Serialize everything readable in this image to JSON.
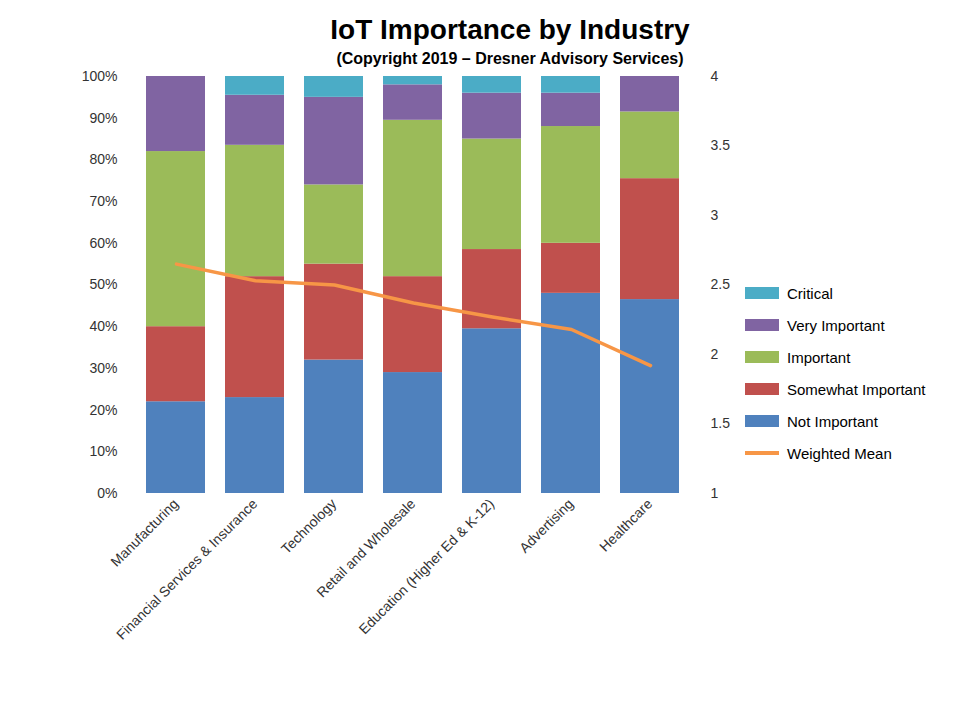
{
  "chart_data": {
    "type": "bar",
    "title": "IoT Importance by Industry",
    "subtitle": "(Copyright 2019 – Dresner Advisory Services)",
    "categories": [
      "Manufacturing",
      "Financial Services & Insurance",
      "Technology",
      "Retail and Wholesale",
      "Education (Higher Ed & K-12)",
      "Advertising",
      "Healthcare"
    ],
    "stacked": true,
    "grid": false,
    "legend": "right",
    "ylim": [
      0,
      100
    ],
    "yticks": [
      {
        "value": 0,
        "label": "0%"
      },
      {
        "value": 10,
        "label": "10%"
      },
      {
        "value": 20,
        "label": "20%"
      },
      {
        "value": 30,
        "label": "30%"
      },
      {
        "value": 40,
        "label": "40%"
      },
      {
        "value": 50,
        "label": "50%"
      },
      {
        "value": 60,
        "label": "60%"
      },
      {
        "value": 70,
        "label": "70%"
      },
      {
        "value": 80,
        "label": "80%"
      },
      {
        "value": 90,
        "label": "90%"
      },
      {
        "value": 100,
        "label": "100%"
      }
    ],
    "y2lim": [
      1,
      4
    ],
    "y2ticks": [
      1,
      1.5,
      2,
      2.5,
      3,
      3.5,
      4
    ],
    "series": [
      {
        "name": "Not Important",
        "color": "#4f81bd",
        "values": [
          22,
          23,
          32,
          29,
          39.5,
          48,
          46.5
        ]
      },
      {
        "name": "Somewhat Important",
        "color": "#c0504d",
        "values": [
          18,
          29,
          23,
          23,
          19,
          12,
          29
        ]
      },
      {
        "name": "Important",
        "color": "#9bbb59",
        "values": [
          42,
          31.5,
          19,
          37.5,
          26.5,
          28,
          16
        ]
      },
      {
        "name": "Very Important",
        "color": "#8064a2",
        "values": [
          18,
          12,
          21,
          8.5,
          11,
          8,
          8.5
        ]
      },
      {
        "name": "Critical",
        "color": "#4bacc6",
        "values": [
          0,
          4.5,
          5,
          2,
          4,
          4,
          0
        ]
      },
      {
        "name": "Weighted Mean",
        "color": "#f79646",
        "type": "line",
        "axis": "y2",
        "values": [
          2.65,
          2.53,
          2.5,
          2.37,
          2.27,
          2.18,
          1.92
        ]
      }
    ]
  }
}
